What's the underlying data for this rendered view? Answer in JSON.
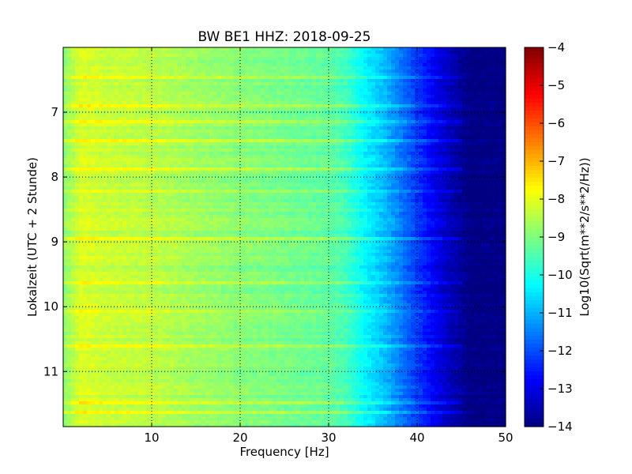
{
  "chart_data": {
    "type": "heatmap",
    "title": "BW BE1 HHZ: 2018-09-25",
    "xlabel": "Frequency [Hz]",
    "ylabel": "Lokalzeit (UTC + 2 Stunde)",
    "xlim": [
      0,
      50
    ],
    "ylim": [
      6.0,
      11.85
    ],
    "y_inverted": true,
    "x_ticks": [
      10,
      20,
      30,
      40,
      50
    ],
    "y_ticks": [
      7,
      8,
      9,
      10,
      11
    ],
    "grid": true,
    "colormap": "jet",
    "colorbar": {
      "label": "Log10(Sqrt(m**2/s**2/Hz))",
      "min": -14,
      "max": -4,
      "ticks": [
        -4,
        -5,
        -6,
        -7,
        -8,
        -9,
        -10,
        -11,
        -12,
        -13,
        -14
      ]
    },
    "spectrum_profile": {
      "frequency_hz": [
        0,
        2,
        5,
        10,
        15,
        20,
        25,
        30,
        32,
        34,
        36,
        38,
        40,
        42,
        44,
        46,
        50
      ],
      "log_amplitude": [
        -8.9,
        -8.1,
        -8.3,
        -8.4,
        -8.7,
        -8.9,
        -9.1,
        -9.3,
        -9.6,
        -10.3,
        -10.8,
        -11.5,
        -12.2,
        -12.9,
        -13.5,
        -14.0,
        -14.0
      ]
    },
    "bright_bands_local_time": [
      6.48,
      6.92,
      7.15,
      7.45,
      7.86,
      8.22,
      8.95,
      9.63,
      10.08,
      10.62,
      11.5,
      11.62
    ]
  }
}
